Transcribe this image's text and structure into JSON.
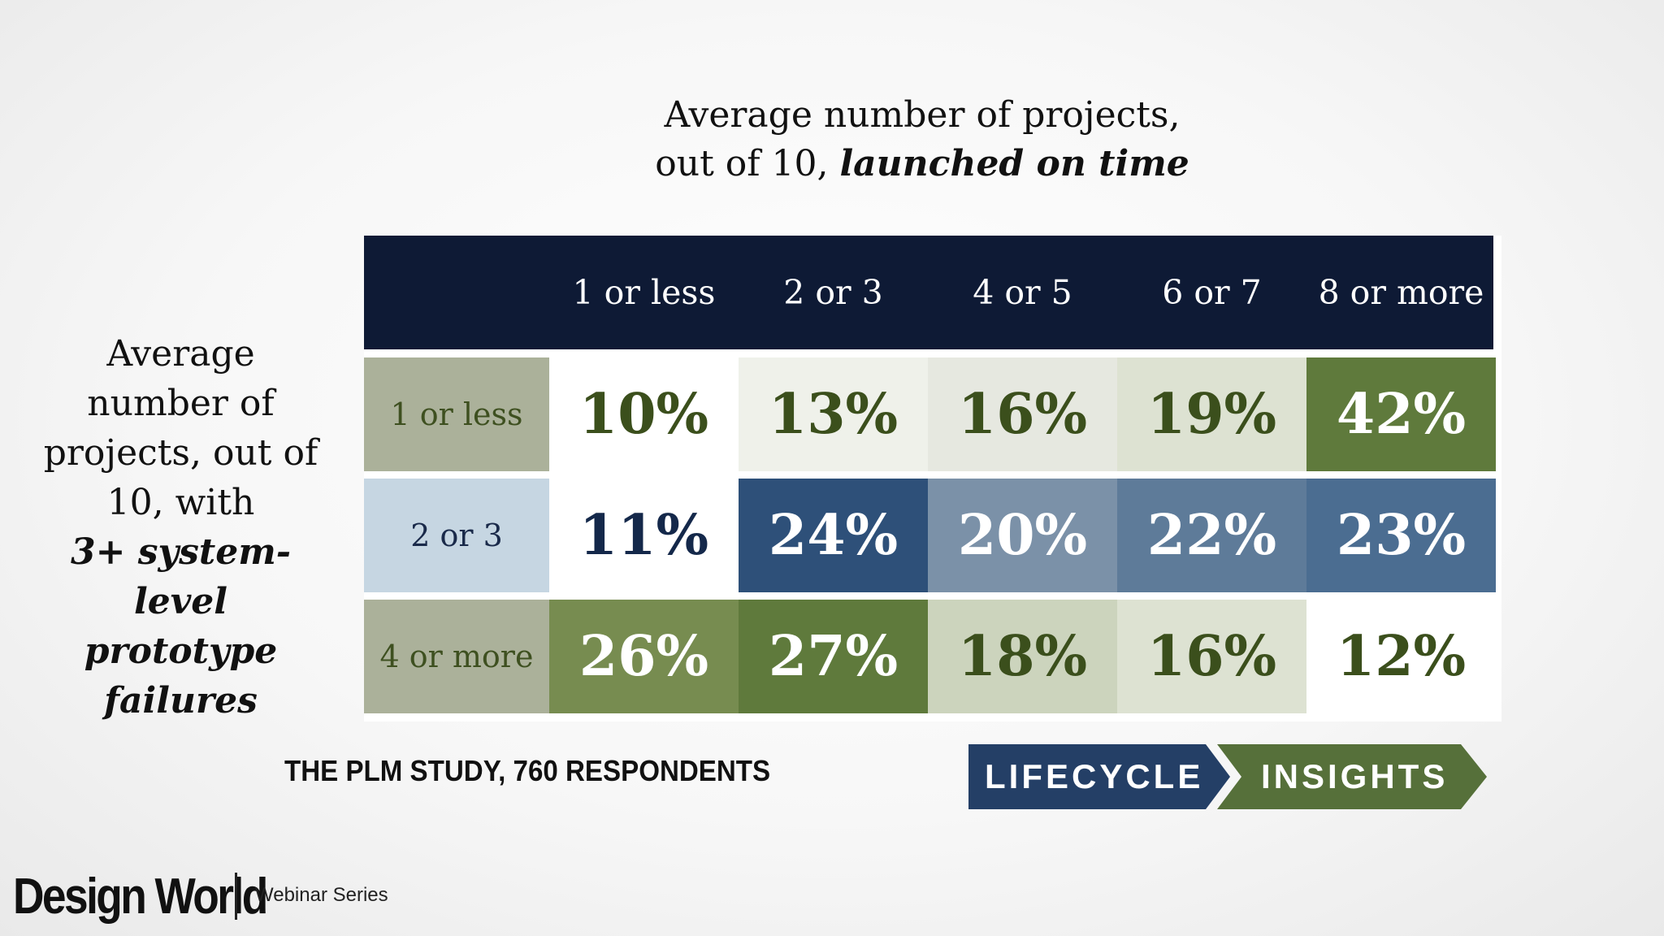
{
  "chart_data": {
    "type": "table",
    "title_line1": "Average number of projects,",
    "title_line2_plain": "out of 10, ",
    "title_line2_emph": "launched on time",
    "row_axis_title_lines": [
      "Average",
      "number of",
      "projects, out of",
      "10, with"
    ],
    "row_axis_title_emph_lines": [
      "3+ system-level",
      "prototype",
      "failures"
    ],
    "columns": [
      "1 or less",
      "2 or 3",
      "4 or 5",
      "6 or 7",
      "8 or more"
    ],
    "rows": [
      {
        "label": "1 or less",
        "label_bg": "#abb19a",
        "label_color": "#3e5020",
        "values": [
          "10%",
          "13%",
          "16%",
          "19%",
          "42%"
        ],
        "bg": [
          "#ffffff",
          "#eff1ea",
          "#e6e8e0",
          "#dde2d2",
          "#5f7a3c"
        ],
        "fg": [
          "#3b4f1c",
          "#3b4f1c",
          "#3b4f1c",
          "#3b4f1c",
          "#ffffff"
        ]
      },
      {
        "label": "2 or 3",
        "label_bg": "#c6d6e2",
        "label_color": "#1a2a4a",
        "values": [
          "11%",
          "24%",
          "20%",
          "22%",
          "23%"
        ],
        "bg": [
          "#ffffff",
          "#2e5079",
          "#7b91a8",
          "#5e7b99",
          "#4b6d91"
        ],
        "fg": [
          "#14284a",
          "#ffffff",
          "#ffffff",
          "#ffffff",
          "#ffffff"
        ]
      },
      {
        "label": "4 or more",
        "label_bg": "#abb19a",
        "label_color": "#3e5020",
        "values": [
          "26%",
          "27%",
          "18%",
          "16%",
          "12%"
        ],
        "bg": [
          "#778c50",
          "#5f7a3c",
          "#ccd4bd",
          "#dde2d2",
          "#ffffff"
        ],
        "fg": [
          "#ffffff",
          "#ffffff",
          "#3b4f1c",
          "#3b4f1c",
          "#3b4f1c"
        ]
      }
    ]
  },
  "source_text": "THE PLM STUDY, 760 RESPONDENTS",
  "badge": {
    "left_text": "LIFECYCLE",
    "right_text": "INSIGHTS",
    "left_color": "#243f66",
    "right_color": "#56703a"
  },
  "brand": {
    "name": "Design World",
    "subtitle": "Webinar Series"
  },
  "colors": {
    "header_bg": "#0e1a35"
  }
}
